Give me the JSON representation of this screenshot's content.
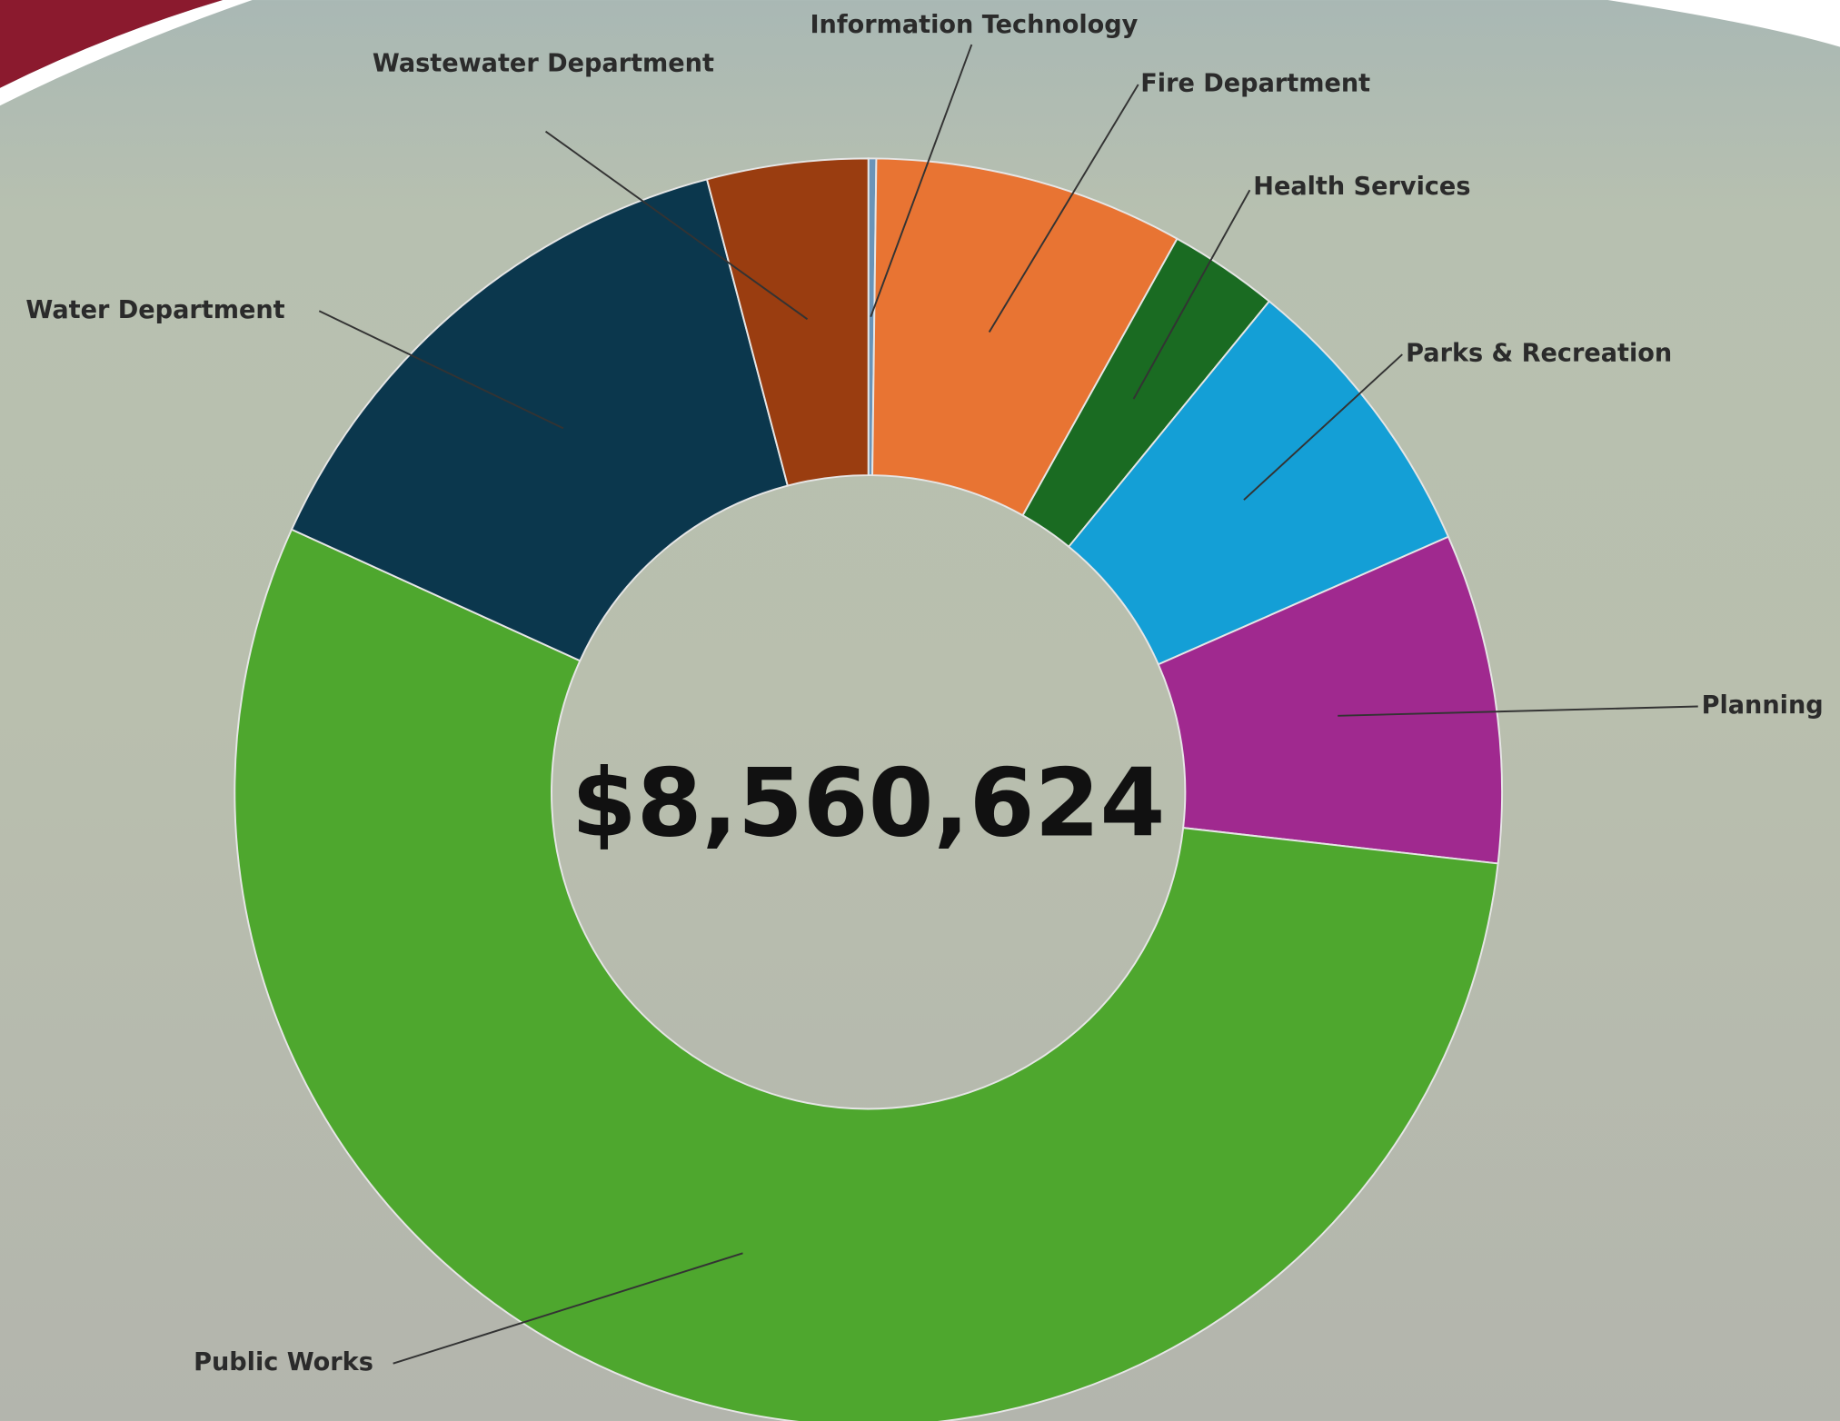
{
  "chart_data": {
    "type": "donut",
    "center_label": "$8,560,624",
    "categories": [
      "Information Technology",
      "Fire Department",
      "Health Services",
      "Parks & Recreation",
      "Planning",
      "Public Works",
      "Water Department",
      "Wastewater Department"
    ],
    "values": [
      0.2,
      7.9,
      2.8,
      7.5,
      8.4,
      55.0,
      14.1,
      4.1
    ],
    "colors": [
      "#6a94b8",
      "#e87433",
      "#1a6b22",
      "#149fd6",
      "#a0298f",
      "#4ea72e",
      "#0b374d",
      "#9a3d10"
    ]
  }
}
